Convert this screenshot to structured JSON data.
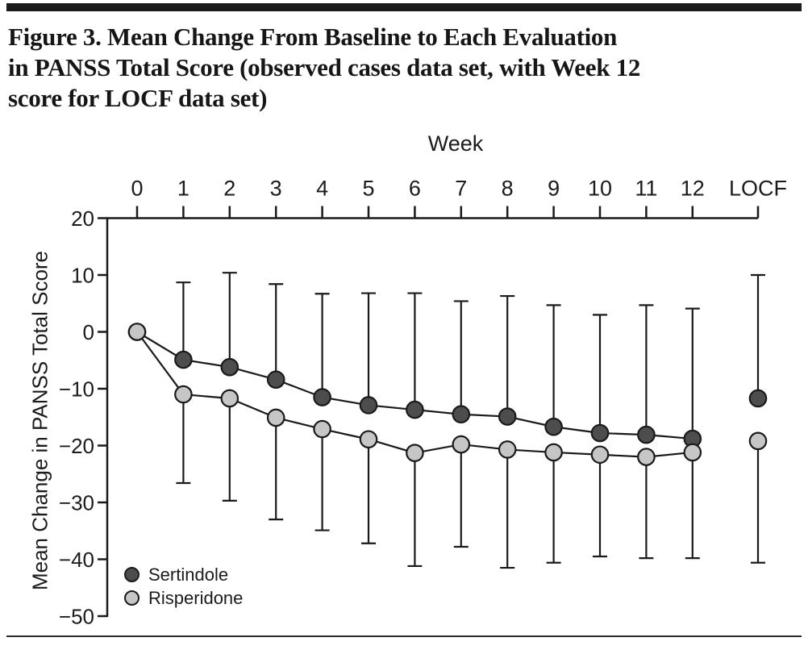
{
  "page": {
    "title_lines": [
      "Figure 3. Mean Change From Baseline to Each Evaluation",
      "in PANSS Total Score (observed cases data set, with Week 12",
      "score for LOCF data set)"
    ]
  },
  "chart_data": {
    "type": "line",
    "title": "Figure 3. Mean Change From Baseline to Each Evaluation in PANSS Total Score (observed cases data set, with Week 12 score for LOCF data set)",
    "x_axis": {
      "label": "Week",
      "position": "top",
      "tick_labels": [
        "0",
        "1",
        "2",
        "3",
        "4",
        "5",
        "6",
        "7",
        "8",
        "9",
        "10",
        "11",
        "12",
        "LOCF"
      ]
    },
    "y_axis": {
      "label": "Mean Change in PANSS Total Score",
      "ticks": [
        20,
        10,
        0,
        -10,
        -20,
        -30,
        -40,
        -50
      ],
      "range": [
        -50,
        20
      ]
    },
    "series": [
      {
        "name": "Sertindole",
        "color": "#4d4d4d",
        "values": [
          0,
          -4.9,
          -6.2,
          -8.4,
          -11.5,
          -12.9,
          -13.7,
          -14.5,
          -14.9,
          -16.7,
          -17.8,
          -18.1,
          -18.8,
          -11.7
        ]
      },
      {
        "name": "Risperidone",
        "color": "#c6c6c6",
        "values": [
          0,
          -11.0,
          -11.7,
          -15.1,
          -17.1,
          -18.9,
          -21.3,
          -19.8,
          -20.7,
          -21.2,
          -21.6,
          -22.0,
          -21.2,
          -19.2
        ]
      }
    ],
    "error_bars": {
      "upper": [
        null,
        8.7,
        10.4,
        8.4,
        6.7,
        6.8,
        6.8,
        5.4,
        6.3,
        4.7,
        3.0,
        4.7,
        4.1,
        10.0
      ],
      "upper_attached_to": "Sertindole",
      "lower": [
        null,
        -26.6,
        -29.7,
        -33.0,
        -34.9,
        -37.2,
        -41.2,
        -37.8,
        -41.5,
        -40.6,
        -39.5,
        -39.8,
        -39.8,
        -40.6
      ],
      "lower_attached_to": "Risperidone"
    },
    "layout_hints": {
      "grid": false,
      "legend_position": "bottom-left inside plot",
      "locf_points_connected": false,
      "baseline_shared_point": true
    }
  }
}
